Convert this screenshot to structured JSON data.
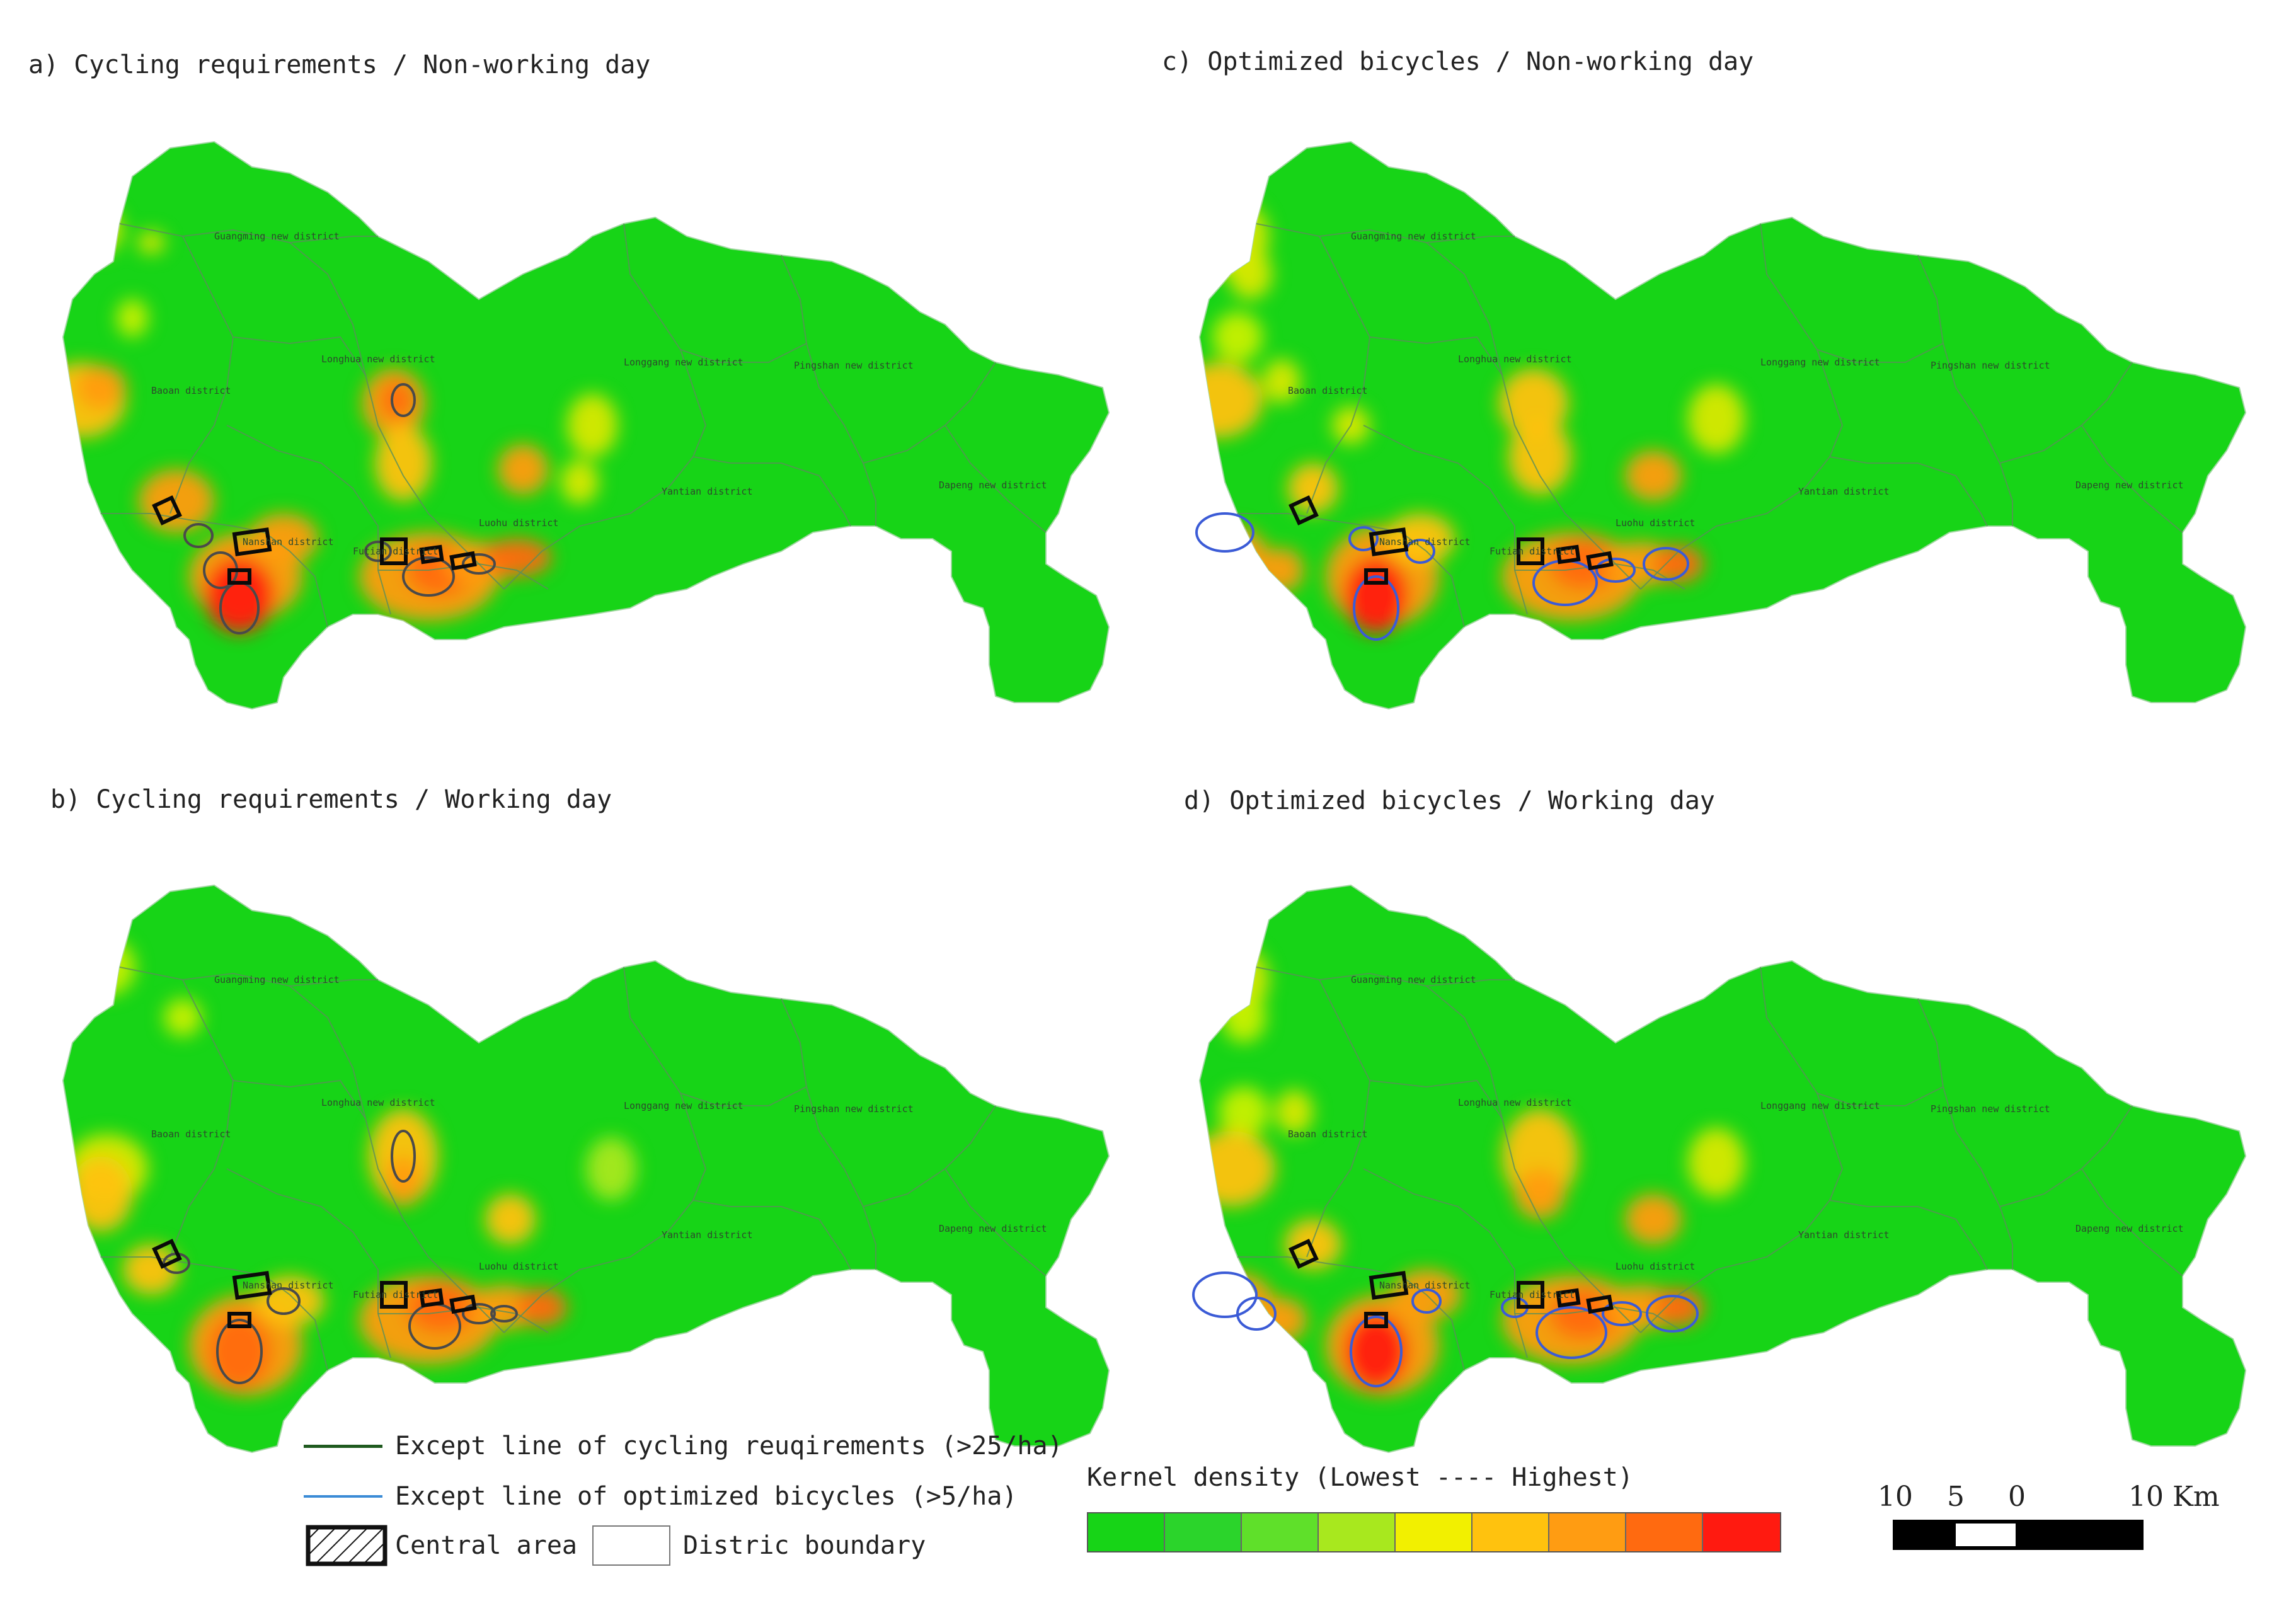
{
  "panels": [
    {
      "id": "a",
      "title": "a) Cycling requirements / Non-working day"
    },
    {
      "id": "c",
      "title": "c) Optimized bicycles / Non-working day"
    },
    {
      "id": "b",
      "title": "b) Cycling requirements / Working day"
    },
    {
      "id": "d",
      "title": "d) Optimized bicycles / Working day"
    }
  ],
  "district_labels": {
    "guangming": "Guangming new district",
    "baoan": "Baoan district",
    "longhua": "Longhua new district",
    "longgang": "Longgang new district",
    "pingshan": "Pingshan new district",
    "yantian": "Yantian district",
    "dapeng": "Dapeng new district",
    "nanshan": "Nanshan district",
    "futian": "Futian district",
    "luohu": "Luohu district"
  },
  "legend": {
    "line_requirements": "Except line of cycling reuqirements (>25/ha)",
    "line_optimized": "Except line of optimized bicycles (>5/ha)",
    "central_area": "Central area",
    "district_boundary": "Distric boundary",
    "kernel_title": "Kernel density (Lowest ---- Highest)",
    "kernel_colors": [
      "#17d417",
      "#2bd42b",
      "#5fe02a",
      "#a8e81e",
      "#f2f000",
      "#ffc20e",
      "#ff9c12",
      "#ff6a10",
      "#ff1a10"
    ],
    "line_requirements_color": "#1f5a1f",
    "line_optimized_color": "#3b6bd6"
  },
  "scale": {
    "ticks": [
      "10",
      "5",
      "0",
      "10 Km"
    ]
  }
}
